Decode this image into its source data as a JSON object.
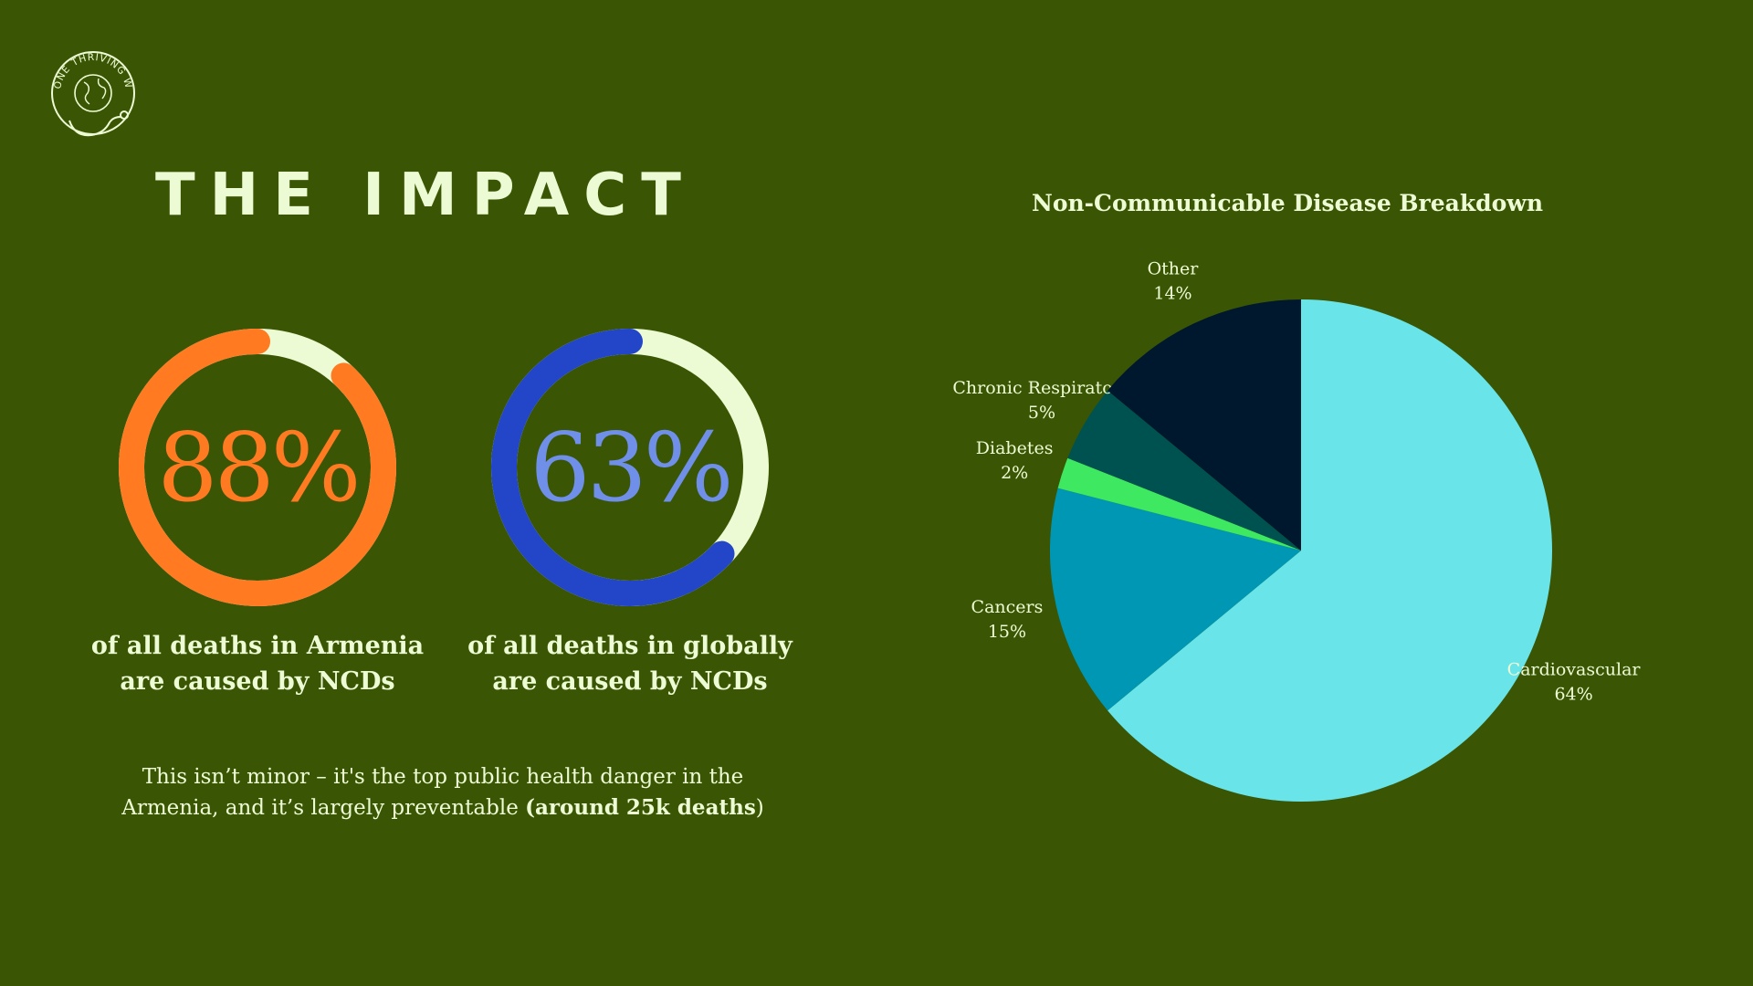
{
  "logo": {
    "text": "ONE THRIVING WORLD",
    "icon": "globe-stethoscope-logo"
  },
  "title": "THE IMPACT",
  "stats": [
    {
      "value_text": "88%",
      "fraction": 0.88,
      "color": "#ff7a21",
      "track": "#ecfbd3",
      "caption_line1": "of all deaths in Armenia",
      "caption_line2": "are caused by NCDs"
    },
    {
      "value_text": "63%",
      "fraction": 0.63,
      "color": "#2346c8",
      "track": "#ecfbd3",
      "text_color": "#6f8fe8",
      "caption_line1": "of all deaths in globally",
      "caption_line2": "are caused by NCDs"
    }
  ],
  "note": {
    "text": "This isn’t minor – it's the top public health danger in the Armenia, and it’s largely preventable ",
    "bold": "(around 25k deaths",
    "close": ")"
  },
  "chart_data": {
    "type": "pie",
    "title": "Non-Communicable Disease Breakdown",
    "categories": [
      "Cardiovascular",
      "Cancers",
      "Diabetes",
      "Chronic Respiratory",
      "Other"
    ],
    "values": [
      64,
      15,
      2,
      5,
      14
    ],
    "value_labels": [
      "64%",
      "15%",
      "2%",
      "5%",
      "14%"
    ],
    "colors": [
      "#69e5ea",
      "#0097b4",
      "#3ee861",
      "#005250",
      "#00182e"
    ],
    "start": "12 o'clock",
    "direction": "clockwise"
  }
}
